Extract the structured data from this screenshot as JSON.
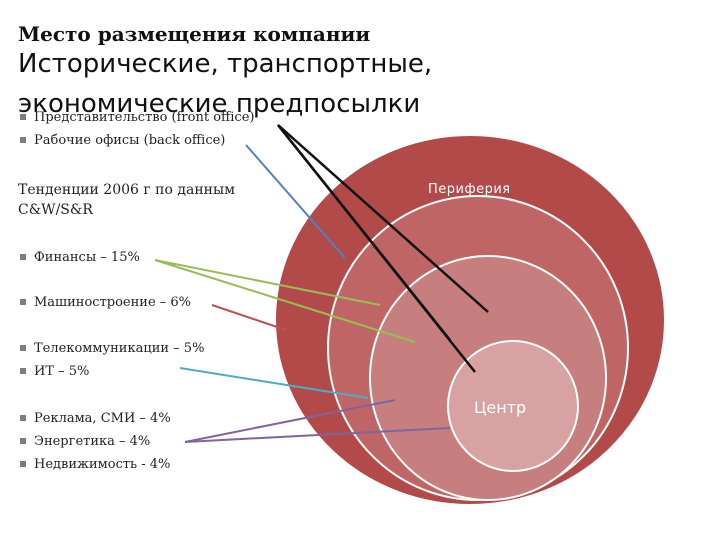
{
  "title_top": "Место размещения компании",
  "title_main_line1": "Исторические, транспортные,",
  "title_main_line2": "экономические предпосылки",
  "premise_items": [
    "Представительство (front office)",
    "Рабочие офисы (back office)"
  ],
  "trend_heading": "Тенденции 2006 г по данным C&W/S&R",
  "sector_groups": [
    [
      "Финансы – 15%"
    ],
    [
      "Машиностроение – 6%"
    ],
    [
      "Телекоммуникации – 5%",
      "ИТ – 5%"
    ],
    [
      "Реклама, СМИ – 4%",
      "Энергетика – 4%",
      "Недвижимость - 4%"
    ]
  ],
  "zones": {
    "periphery": "Периферия",
    "center": "Центр"
  },
  "colors": {
    "outer_circle": "#b24a4a",
    "middle_circle": "#c06565",
    "inner_circle": "#c67e7e",
    "center_circle": "#d8a2a2",
    "line_black": "#111111",
    "line_blue": "#4f81bd",
    "line_green": "#9bbb59",
    "line_red": "#c0504d",
    "line_cyan": "#4bacc6",
    "line_purple": "#8064a2"
  },
  "icons": [
    "square-bullet-icon"
  ]
}
